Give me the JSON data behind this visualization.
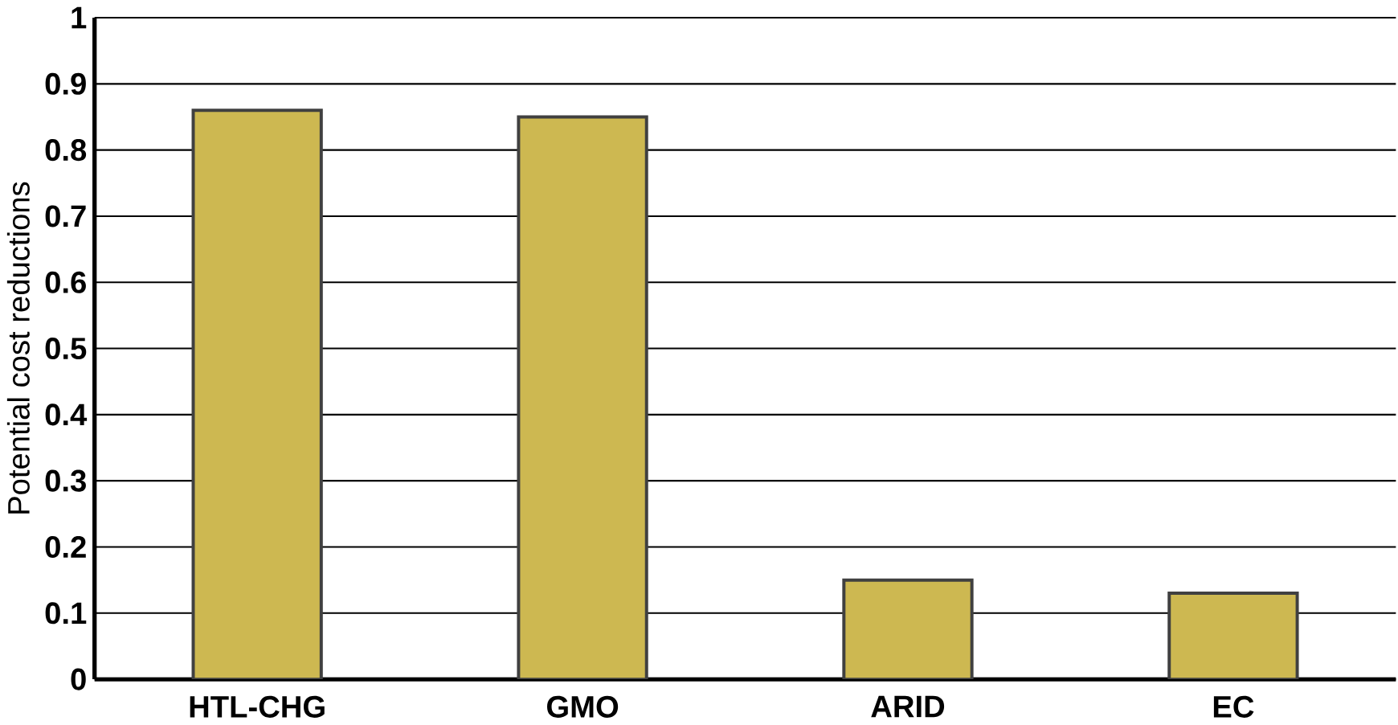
{
  "chart_data": {
    "type": "bar",
    "ylabel": "Potential cost reductions",
    "categories": [
      "HTL-CHG",
      "GMO",
      "ARID",
      "EC"
    ],
    "values": [
      0.86,
      0.85,
      0.15,
      0.13
    ],
    "color": "#cdb851",
    "ylim": [
      0,
      1
    ],
    "yticks": [
      0,
      0.1,
      0.2,
      0.3,
      0.4,
      0.5,
      0.6,
      0.7,
      0.8,
      0.9,
      1
    ],
    "grid": "y"
  }
}
